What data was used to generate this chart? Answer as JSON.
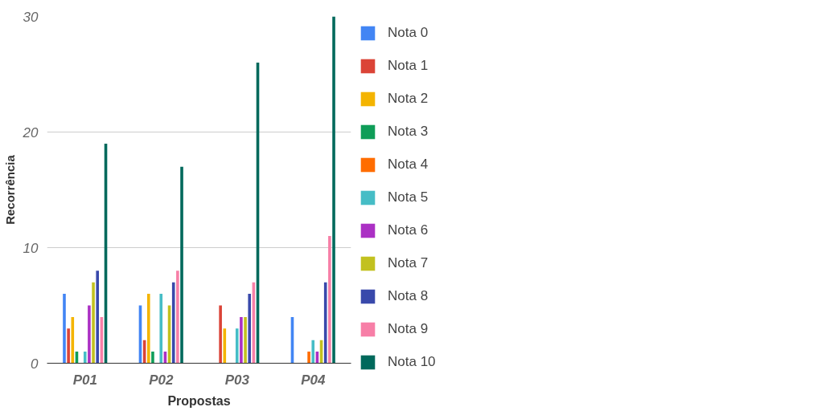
{
  "chart_data": {
    "type": "bar",
    "xlabel": "Propostas",
    "ylabel": "Recorrência",
    "categories": [
      "P01",
      "P02",
      "P03",
      "P04"
    ],
    "series": [
      {
        "name": "Nota 0",
        "color": "#4285f4",
        "values": [
          6,
          5,
          0,
          4
        ]
      },
      {
        "name": "Nota 1",
        "color": "#db4437",
        "values": [
          3,
          2,
          5,
          0
        ]
      },
      {
        "name": "Nota 2",
        "color": "#f4b400",
        "values": [
          4,
          6,
          3,
          0
        ]
      },
      {
        "name": "Nota 3",
        "color": "#0f9d58",
        "values": [
          1,
          1,
          0,
          0
        ]
      },
      {
        "name": "Nota 4",
        "color": "#ff6d00",
        "values": [
          0,
          0,
          0,
          1
        ]
      },
      {
        "name": "Nota 5",
        "color": "#46bdc6",
        "values": [
          1,
          6,
          3,
          2
        ]
      },
      {
        "name": "Nota 6",
        "color": "#ab30c4",
        "values": [
          5,
          1,
          4,
          1
        ]
      },
      {
        "name": "Nota 7",
        "color": "#c2c11f",
        "values": [
          7,
          5,
          4,
          2
        ]
      },
      {
        "name": "Nota 8",
        "color": "#3949ab",
        "values": [
          8,
          7,
          6,
          7
        ]
      },
      {
        "name": "Nota 9",
        "color": "#f77fa7",
        "values": [
          4,
          8,
          7,
          11
        ]
      },
      {
        "name": "Nota 10",
        "color": "#00695c",
        "values": [
          19,
          17,
          26,
          30
        ]
      }
    ],
    "ylim": [
      0,
      30
    ],
    "yticks": [
      0,
      10,
      20,
      30
    ],
    "grid": "y",
    "legend": "right"
  }
}
